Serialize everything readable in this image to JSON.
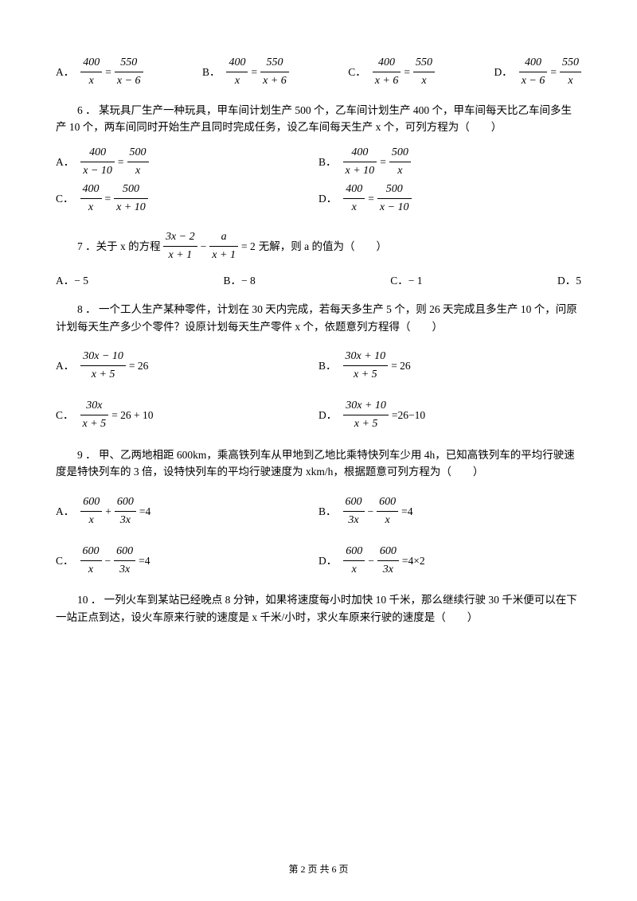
{
  "q5": {
    "optA": "A．",
    "optB": "B．",
    "optC": "C．",
    "optD": "D．",
    "f1n": "400",
    "f1d": "x",
    "f2n": "550",
    "f2d": "x − 6",
    "f3n": "400",
    "f3d": "x",
    "f4n": "550",
    "f4d": "x + 6",
    "f5n": "400",
    "f5d": "x + 6",
    "f6n": "550",
    "f6d": "x",
    "f7n": "400",
    "f7d": "x − 6",
    "f8n": "550",
    "f8d": "x"
  },
  "q6": {
    "text": "6 ． 某玩具厂生产一种玩具，甲车间计划生产 500 个，乙车间计划生产 400 个，甲车间每天比乙车间多生产 10 个，两车间同时开始生产且同时完成任务，设乙车间每天生产 x 个，可列方程为（　　）",
    "optA": "A．",
    "optB": "B．",
    "optC": "C．",
    "optD": "D．",
    "aN1": "400",
    "aD1": "x − 10",
    "aN2": "500",
    "aD2": "x",
    "bN1": "400",
    "bD1": "x + 10",
    "bN2": "500",
    "bD2": "x",
    "cN1": "400",
    "cD1": "x",
    "cN2": "500",
    "cD2": "x + 10",
    "dN1": "400",
    "dD1": "x",
    "dN2": "500",
    "dD2": "x − 10"
  },
  "q7": {
    "text": "7 ．关于 x 的方程",
    "eqN1": "3x − 2",
    "eqD1": "x + 1",
    "eqN2": "a",
    "eqD2": "x + 1",
    "eqR": "= 2",
    "tail": " 无解，则 a 的值为（　　）",
    "optA": "A．− 5",
    "optB": "B．− 8",
    "optC": "C．− 1",
    "optD": "D．5"
  },
  "q8": {
    "text": "8 ． 一个工人生产某种零件，计划在 30 天内完成，若每天多生产 5 个，则 26 天完成且多生产 10 个，问原计划每天生产多少个零件？设原计划每天生产零件 x 个，依题意列方程得（　　）",
    "optA": "A．",
    "optB": "B．",
    "optC": "C．",
    "optD": "D．",
    "aN": "30x − 10",
    "aD": "x + 5",
    "aR": "= 26",
    "bN": "30x + 10",
    "bD": "x + 5",
    "bR": "= 26",
    "cN": "30x",
    "cD": "x + 5",
    "cR": "= 26 + 10",
    "dN": "30x + 10",
    "dD": "x + 5",
    "dR": "=26−10"
  },
  "q9": {
    "text": "9 ． 甲、乙两地相距 600km，乘高铁列车从甲地到乙地比乘特快列车少用 4h，已知高铁列车的平均行驶速度是特快列车的 3 倍，设特快列车的平均行驶速度为 xkm/h，根据题意可列方程为（　　）",
    "optA": "A．",
    "optB": "B．",
    "optC": "C．",
    "optD": "D．",
    "aN1": "600",
    "aD1": "x",
    "aOp": "+",
    "aN2": "600",
    "aD2": "3x",
    "aR": "=4",
    "bN1": "600",
    "bD1": "3x",
    "bOp": "−",
    "bN2": "600",
    "bD2": "x",
    "bR": "=4",
    "cN1": "600",
    "cD1": "x",
    "cOp": "−",
    "cN2": "600",
    "cD2": "3x",
    "cR": "=4",
    "dN1": "600",
    "dD1": "x",
    "dOp": "−",
    "dN2": "600",
    "dD2": "3x",
    "dR": "=4×2"
  },
  "q10": {
    "text": "10 ． 一列火车到某站已经晚点 8 分钟，如果将速度每小时加快 10 千米，那么继续行驶 30 千米便可以在下一站正点到达，设火车原来行驶的速度是 x 千米/小时，求火车原来行驶的速度是（　　）"
  },
  "footer": "第 2 页 共 6 页"
}
